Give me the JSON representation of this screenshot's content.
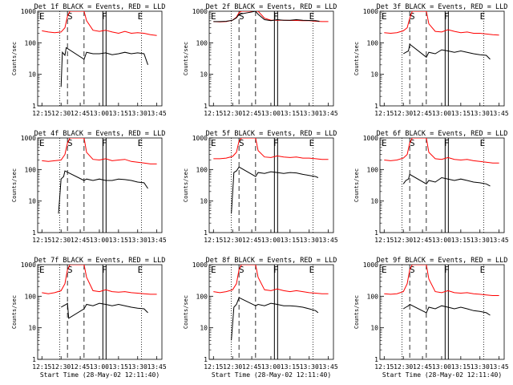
{
  "chart_data": {
    "type": "line",
    "ylabel": "Counts/sec",
    "xlabel": "Start Time (28-May-02 12:11:40)",
    "yscale": "log",
    "ylim": [
      1,
      1000
    ],
    "ytick_labels": [
      "1",
      "10",
      "100",
      "1000"
    ],
    "x_range_minutes": [
      12.25,
      13.8
    ],
    "xtick_labels": [
      "12:15",
      "12:30",
      "12:45",
      "13:00",
      "13:15",
      "13:30",
      "13:45"
    ],
    "xtick_labels_short": [
      "12:15",
      "12:30",
      "12:45",
      "13:00",
      "13:15",
      "13:30",
      "13:45"
    ],
    "marker_labels": {
      "start": "E",
      "saa": "S",
      "flare": "F",
      "end": "E"
    },
    "marker_times": {
      "E1": "12:15",
      "S": "12:37",
      "F": "13:04",
      "E2": "13:32"
    },
    "dotted_lines": [
      "12:29",
      "13:33"
    ],
    "dashed_lines": [
      "12:35",
      "12:48"
    ],
    "colors": {
      "events": "#000000",
      "lld": "#ff0000",
      "axis": "#000000"
    },
    "panels": [
      {
        "title": "Det 1f BLACK = Events, RED = LLD",
        "show_xlabel": false,
        "series": [
          {
            "color": "#ff0000",
            "x": [
              "12:15",
              "12:20",
              "12:25",
              "12:30",
              "12:33",
              "12:35",
              "12:37",
              "12:40",
              "12:45",
              "12:48",
              "12:50",
              "12:55",
              "13:00",
              "13:05",
              "13:10",
              "13:15",
              "13:20",
              "13:25",
              "13:30",
              "13:35",
              "13:40",
              "13:45"
            ],
            "y": [
              240,
              220,
              210,
              220,
              300,
              700,
              1000,
              1000,
              1000,
              1000,
              500,
              250,
              230,
              250,
              220,
              200,
              230,
              200,
              210,
              200,
              180,
              170
            ]
          },
          {
            "color": "#000000",
            "x": [
              "12:30",
              "12:31",
              "12:33",
              "12:34",
              "12:48",
              "12:50",
              "12:55",
              "13:00",
              "13:05",
              "13:10",
              "13:15",
              "13:20",
              "13:25",
              "13:30",
              "13:35",
              "13:38"
            ],
            "y": [
              4,
              50,
              40,
              70,
              30,
              50,
              45,
              45,
              48,
              42,
              45,
              50,
              45,
              48,
              45,
              20
            ]
          }
        ]
      },
      {
        "title": "Det 2f BLACK = Events, RED = LLD",
        "show_xlabel": false,
        "series": [
          {
            "color": "#ff0000",
            "x": [
              "12:15",
              "12:20",
              "12:25",
              "12:30",
              "12:33",
              "12:35",
              "12:37",
              "12:40",
              "12:45",
              "12:48",
              "12:50",
              "12:55",
              "13:00",
              "13:05",
              "13:10",
              "13:15",
              "13:20",
              "13:25",
              "13:30",
              "13:35",
              "13:40",
              "13:45"
            ],
            "y": [
              470,
              460,
              470,
              520,
              650,
              900,
              1000,
              1000,
              1000,
              1000,
              1000,
              600,
              520,
              520,
              520,
              510,
              510,
              500,
              500,
              480,
              470,
              470
            ]
          },
          {
            "color": "#000000",
            "x": [
              "12:15",
              "12:20",
              "12:25",
              "12:30",
              "12:33",
              "12:35",
              "12:48",
              "12:50",
              "12:55",
              "13:00",
              "13:05",
              "13:10",
              "13:15",
              "13:20",
              "13:25",
              "13:30",
              "13:35",
              "13:38"
            ],
            "y": [
              470,
              470,
              480,
              520,
              620,
              800,
              1000,
              800,
              540,
              500,
              540,
              520,
              520,
              540,
              520,
              510,
              500,
              480
            ]
          }
        ]
      },
      {
        "title": "Det 3f BLACK = Events, RED = LLD",
        "show_xlabel": false,
        "series": [
          {
            "color": "#ff0000",
            "x": [
              "12:15",
              "12:20",
              "12:25",
              "12:30",
              "12:33",
              "12:35",
              "12:37",
              "12:40",
              "12:45",
              "12:48",
              "12:50",
              "12:55",
              "13:00",
              "13:05",
              "13:10",
              "13:15",
              "13:20",
              "13:25",
              "13:30",
              "13:35",
              "13:40",
              "13:45"
            ],
            "y": [
              210,
              200,
              210,
              240,
              300,
              600,
              1000,
              1000,
              1000,
              1000,
              400,
              230,
              220,
              260,
              230,
              210,
              220,
              200,
              200,
              190,
              180,
              175
            ]
          },
          {
            "color": "#000000",
            "x": [
              "12:30",
              "12:32",
              "12:34",
              "12:35",
              "12:48",
              "12:50",
              "12:55",
              "13:00",
              "13:05",
              "13:10",
              "13:15",
              "13:20",
              "13:25",
              "13:30",
              "13:35",
              "13:38"
            ],
            "y": [
              45,
              50,
              55,
              90,
              35,
              50,
              45,
              60,
              55,
              50,
              55,
              50,
              45,
              42,
              40,
              30
            ]
          }
        ]
      },
      {
        "title": "Det 4f BLACK = Events, RED = LLD",
        "show_xlabel": false,
        "series": [
          {
            "color": "#ff0000",
            "x": [
              "12:15",
              "12:20",
              "12:25",
              "12:30",
              "12:33",
              "12:35",
              "12:37",
              "12:40",
              "12:45",
              "12:48",
              "12:50",
              "12:55",
              "13:00",
              "13:05",
              "13:10",
              "13:15",
              "13:20",
              "13:25",
              "13:30",
              "13:35",
              "13:40",
              "13:45"
            ],
            "y": [
              190,
              180,
              190,
              200,
              300,
              700,
              1000,
              1000,
              1000,
              1000,
              350,
              210,
              200,
              220,
              190,
              200,
              210,
              180,
              170,
              160,
              150,
              150
            ]
          },
          {
            "color": "#000000",
            "x": [
              "12:28",
              "12:30",
              "12:32",
              "12:33",
              "12:48",
              "12:50",
              "12:55",
              "13:00",
              "13:05",
              "13:10",
              "13:15",
              "13:20",
              "13:25",
              "13:30",
              "13:35",
              "13:38"
            ],
            "y": [
              4,
              50,
              60,
              90,
              45,
              50,
              45,
              50,
              45,
              45,
              50,
              48,
              45,
              40,
              38,
              25
            ]
          }
        ]
      },
      {
        "title": "Det 5f BLACK = Events, RED = LLD",
        "show_xlabel": false,
        "series": [
          {
            "color": "#ff0000",
            "x": [
              "12:15",
              "12:20",
              "12:25",
              "12:30",
              "12:33",
              "12:35",
              "12:37",
              "12:40",
              "12:45",
              "12:48",
              "12:50",
              "12:55",
              "13:00",
              "13:05",
              "13:10",
              "13:15",
              "13:20",
              "13:25",
              "13:30",
              "13:35",
              "13:40",
              "13:45"
            ],
            "y": [
              220,
              220,
              230,
              260,
              350,
              800,
              1000,
              1000,
              1000,
              1000,
              400,
              250,
              240,
              270,
              250,
              240,
              250,
              230,
              230,
              220,
              210,
              210
            ]
          },
          {
            "color": "#000000",
            "x": [
              "12:29",
              "12:31",
              "12:33",
              "12:35",
              "12:48",
              "12:50",
              "12:55",
              "13:00",
              "13:05",
              "13:10",
              "13:15",
              "13:20",
              "13:25",
              "13:30",
              "13:35",
              "13:37"
            ],
            "y": [
              4,
              80,
              90,
              120,
              60,
              80,
              75,
              85,
              80,
              75,
              80,
              78,
              70,
              65,
              60,
              55
            ]
          }
        ]
      },
      {
        "title": "Det 6f BLACK = Events, RED = LLD",
        "show_xlabel": false,
        "series": [
          {
            "color": "#ff0000",
            "x": [
              "12:15",
              "12:20",
              "12:25",
              "12:30",
              "12:33",
              "12:35",
              "12:37",
              "12:40",
              "12:45",
              "12:48",
              "12:50",
              "12:55",
              "13:00",
              "13:05",
              "13:10",
              "13:15",
              "13:20",
              "13:25",
              "13:30",
              "13:35",
              "13:40",
              "13:45"
            ],
            "y": [
              200,
              190,
              200,
              230,
              300,
              700,
              1000,
              1000,
              1000,
              1000,
              350,
              220,
              210,
              240,
              210,
              200,
              210,
              190,
              180,
              170,
              160,
              160
            ]
          },
          {
            "color": "#000000",
            "x": [
              "12:30",
              "12:32",
              "12:34",
              "12:35",
              "12:48",
              "12:50",
              "12:55",
              "13:00",
              "13:05",
              "13:10",
              "13:15",
              "13:20",
              "13:25",
              "13:30",
              "13:35",
              "13:38"
            ],
            "y": [
              35,
              45,
              50,
              70,
              35,
              45,
              40,
              55,
              50,
              45,
              50,
              45,
              40,
              38,
              35,
              30
            ]
          }
        ]
      },
      {
        "title": "Det 7f BLACK = Events, RED = LLD",
        "show_xlabel": true,
        "series": [
          {
            "color": "#ff0000",
            "x": [
              "12:15",
              "12:20",
              "12:25",
              "12:30",
              "12:33",
              "12:35",
              "12:37",
              "12:40",
              "12:45",
              "12:48",
              "12:50",
              "12:55",
              "13:00",
              "13:05",
              "13:10",
              "13:15",
              "13:20",
              "13:25",
              "13:30",
              "13:35",
              "13:40",
              "13:45"
            ],
            "y": [
              130,
              120,
              130,
              150,
              250,
              700,
              1000,
              1000,
              1000,
              1000,
              400,
              150,
              140,
              160,
              140,
              135,
              140,
              130,
              125,
              120,
              115,
              115
            ]
          },
          {
            "color": "#000000",
            "x": [
              "12:30",
              "12:32",
              "12:34",
              "12:35",
              "12:36",
              "12:48",
              "12:50",
              "12:55",
              "13:00",
              "13:05",
              "13:10",
              "13:15",
              "13:20",
              "13:25",
              "13:30",
              "13:35",
              "13:38"
            ],
            "y": [
              45,
              50,
              55,
              60,
              20,
              40,
              55,
              50,
              60,
              55,
              50,
              55,
              50,
              45,
              42,
              40,
              30
            ]
          }
        ]
      },
      {
        "title": "Det 8f BLACK = Events, RED = LLD",
        "show_xlabel": true,
        "series": [
          {
            "color": "#ff0000",
            "x": [
              "12:15",
              "12:20",
              "12:25",
              "12:30",
              "12:33",
              "12:35",
              "12:37",
              "12:40",
              "12:45",
              "12:48",
              "12:50",
              "12:55",
              "13:00",
              "13:05",
              "13:10",
              "13:15",
              "13:20",
              "13:25",
              "13:30",
              "13:35",
              "13:40",
              "13:45"
            ],
            "y": [
              140,
              130,
              140,
              160,
              250,
              700,
              1000,
              1000,
              1000,
              1000,
              400,
              160,
              150,
              170,
              150,
              140,
              150,
              140,
              130,
              125,
              120,
              120
            ]
          },
          {
            "color": "#000000",
            "x": [
              "12:29",
              "12:31",
              "12:33",
              "12:35",
              "12:48",
              "12:50",
              "12:55",
              "13:00",
              "13:05",
              "13:10",
              "13:15",
              "13:20",
              "13:25",
              "13:30",
              "13:35",
              "13:37"
            ],
            "y": [
              4,
              45,
              55,
              90,
              50,
              55,
              50,
              60,
              55,
              50,
              50,
              48,
              45,
              40,
              35,
              30
            ]
          }
        ]
      },
      {
        "title": "Det 9f BLACK = Events, RED = LLD",
        "show_xlabel": true,
        "series": [
          {
            "color": "#ff0000",
            "x": [
              "12:15",
              "12:20",
              "12:25",
              "12:30",
              "12:33",
              "12:35",
              "12:37",
              "12:40",
              "12:45",
              "12:48",
              "12:50",
              "12:55",
              "13:00",
              "13:05",
              "13:10",
              "13:15",
              "13:20",
              "13:25",
              "13:30",
              "13:35",
              "13:40",
              "13:45"
            ],
            "y": [
              120,
              115,
              120,
              140,
              250,
              700,
              1000,
              1000,
              1000,
              1000,
              350,
              140,
              130,
              150,
              130,
              125,
              130,
              120,
              115,
              110,
              105,
              105
            ]
          },
          {
            "color": "#000000",
            "x": [
              "12:30",
              "12:32",
              "12:34",
              "12:35",
              "12:48",
              "12:50",
              "12:55",
              "13:00",
              "13:05",
              "13:10",
              "13:15",
              "13:20",
              "13:25",
              "13:30",
              "13:35",
              "13:38"
            ],
            "y": [
              40,
              45,
              50,
              55,
              30,
              45,
              40,
              50,
              45,
              40,
              45,
              40,
              35,
              33,
              30,
              25
            ]
          }
        ]
      }
    ]
  }
}
